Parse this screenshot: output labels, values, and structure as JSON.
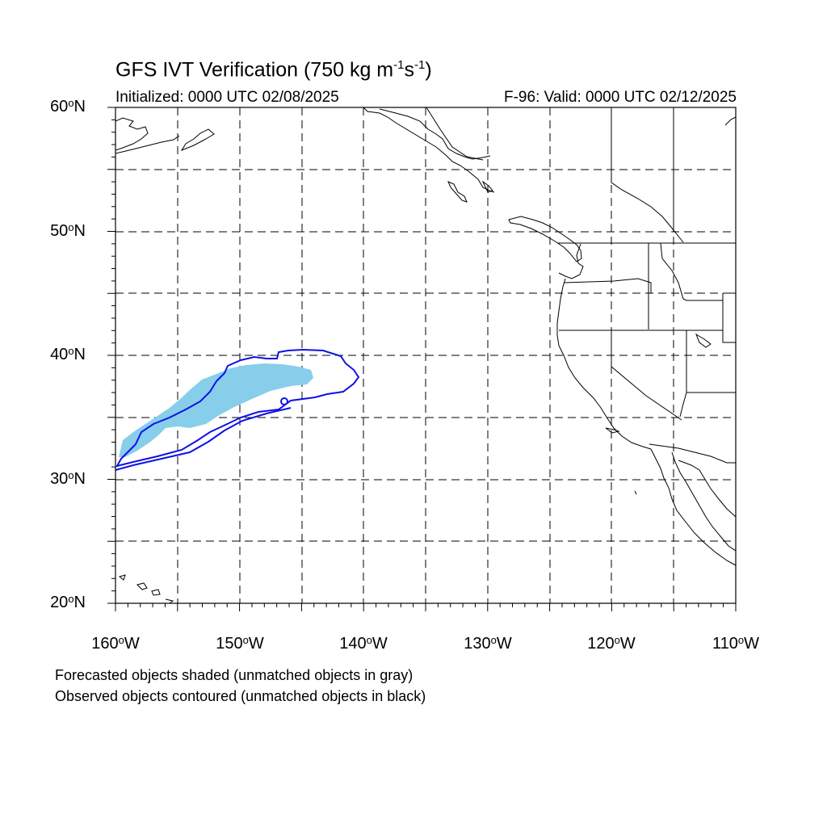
{
  "title": {
    "prefix": "GFS IVT Verification (750 kg m",
    "exp1": "-1",
    "middle": "s",
    "exp2": "-1",
    "suffix": ")"
  },
  "subtitle_left": "Initialized: 0000 UTC 02/08/2025",
  "subtitle_right": "F-96: Valid: 0000 UTC 02/12/2025",
  "lat_labels": [
    {
      "value": "60",
      "hemi": "N"
    },
    {
      "value": "50",
      "hemi": "N"
    },
    {
      "value": "40",
      "hemi": "N"
    },
    {
      "value": "30",
      "hemi": "N"
    },
    {
      "value": "20",
      "hemi": "N"
    }
  ],
  "lon_labels": [
    {
      "value": "160",
      "hemi": "W"
    },
    {
      "value": "150",
      "hemi": "W"
    },
    {
      "value": "140",
      "hemi": "W"
    },
    {
      "value": "130",
      "hemi": "W"
    },
    {
      "value": "120",
      "hemi": "W"
    },
    {
      "value": "110",
      "hemi": "W"
    }
  ],
  "degree_symbol": "o",
  "notes": [
    "Forecasted objects shaded (unmatched objects in gray)",
    "Observed objects contoured (unmatched objects in black)"
  ],
  "colors": {
    "forecast_fill": "#87CEEB",
    "observed_contour": "#1010E6",
    "coastline": "#000000",
    "grid": "#000000"
  }
}
